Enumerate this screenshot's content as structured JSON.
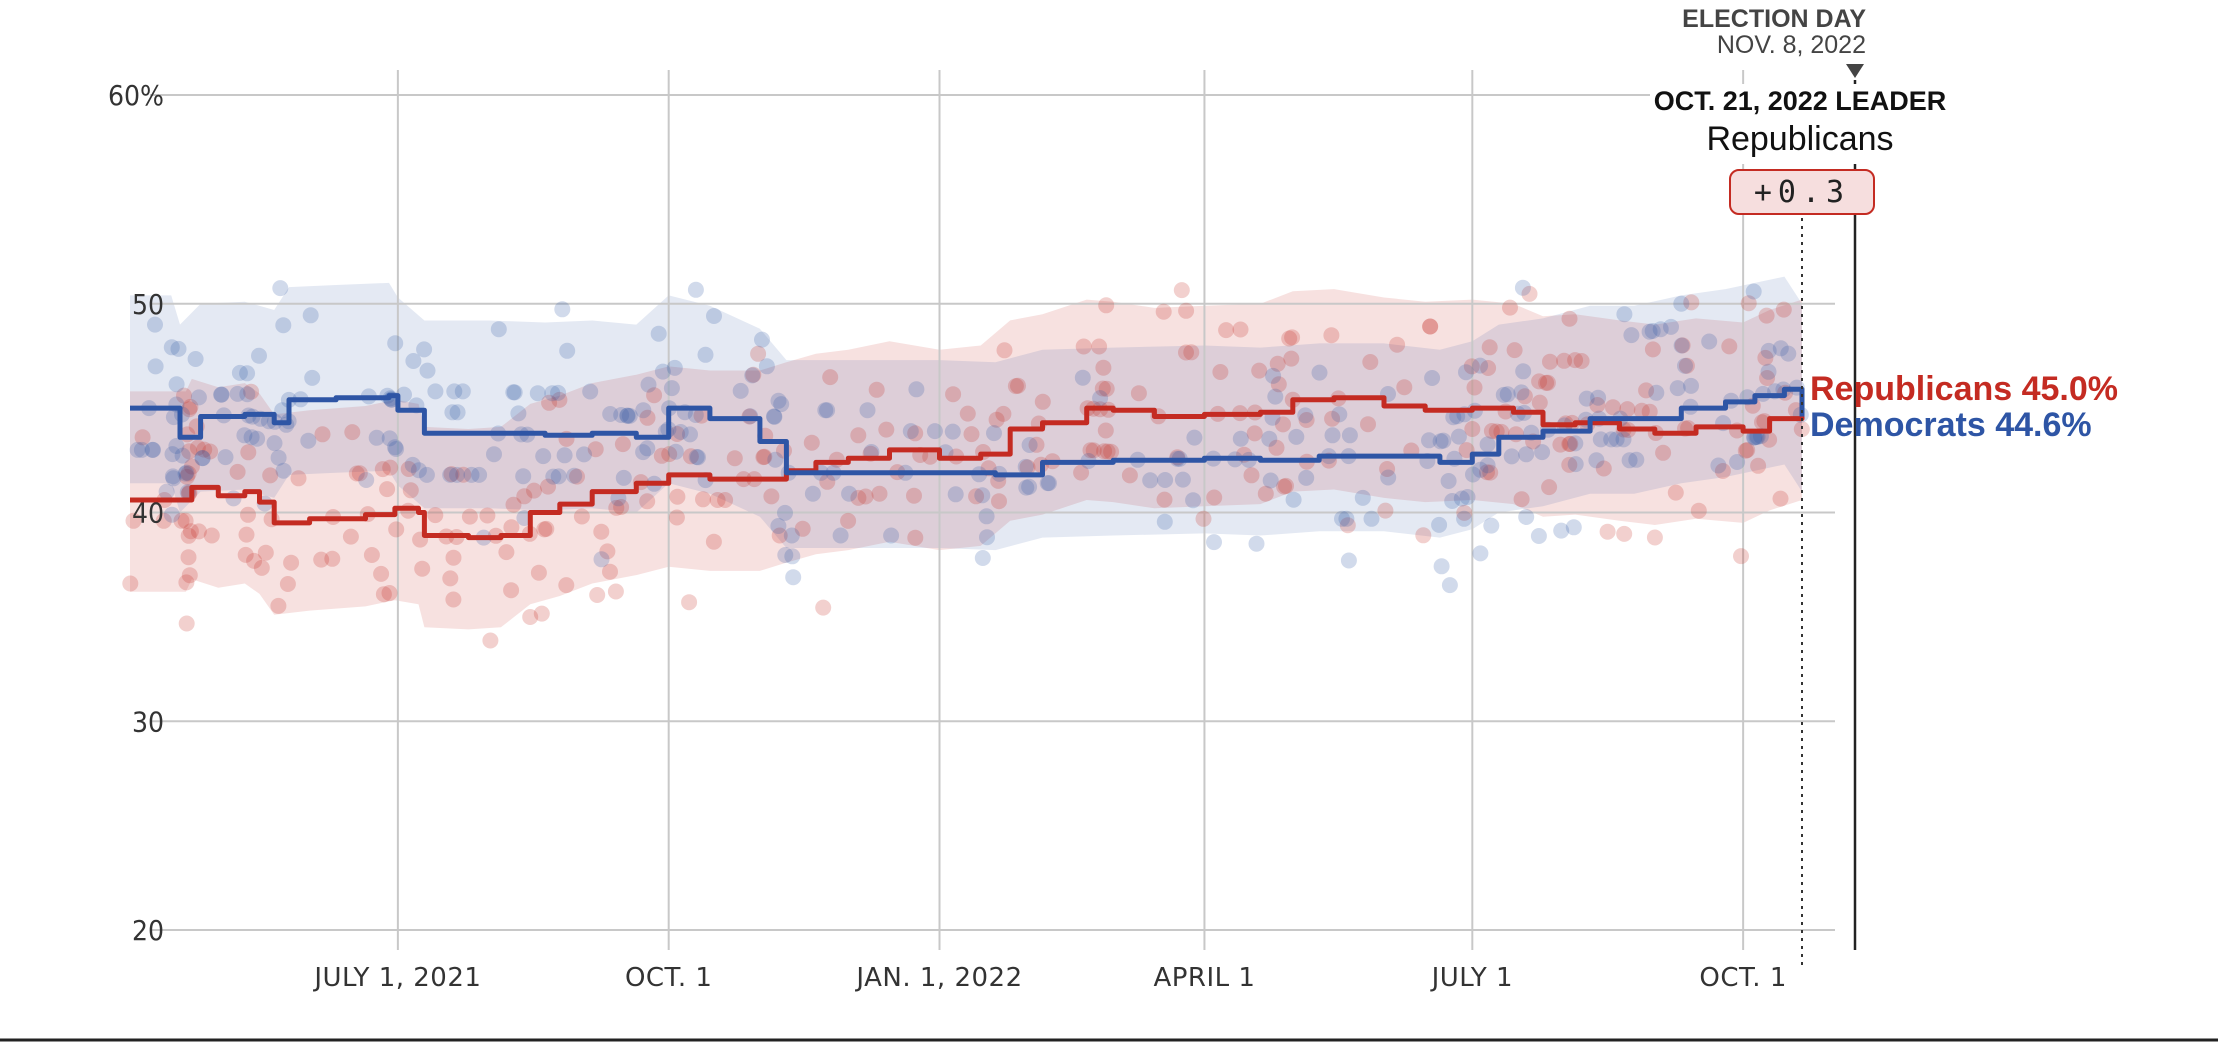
{
  "colors": {
    "republicans": "#c42b22",
    "democrats": "#2e55a5",
    "grid": "#c8c8c8",
    "axis_text": "#333333"
  },
  "annotations": {
    "election_day_label": "ELECTION DAY",
    "election_day_date": "NOV. 8, 2022",
    "leader_date_label": "OCT. 21, 2022 LEADER",
    "leader_party": "Republicans",
    "leader_margin": "+0.3"
  },
  "chart_data": {
    "type": "line",
    "y_ticks": [
      {
        "value": 60,
        "label": "60%"
      },
      {
        "value": 50,
        "label": "50"
      },
      {
        "value": 40,
        "label": "40"
      },
      {
        "value": 30,
        "label": "30"
      },
      {
        "value": 20,
        "label": "20"
      }
    ],
    "ylim": [
      20,
      60
    ],
    "x_ticks": [
      {
        "date": "2021-07-01",
        "label": "JULY 1, 2021"
      },
      {
        "date": "2021-10-01",
        "label": "OCT. 1"
      },
      {
        "date": "2022-01-01",
        "label": "JAN. 1, 2022"
      },
      {
        "date": "2022-04-01",
        "label": "APRIL 1"
      },
      {
        "date": "2022-07-01",
        "label": "JULY 1"
      },
      {
        "date": "2022-10-01",
        "label": "OCT. 1"
      }
    ],
    "xlim": [
      "2021-04-01",
      "2022-11-08"
    ],
    "election_day": "2022-11-08",
    "current_date": "2022-10-21",
    "series": [
      {
        "name": "Republicans",
        "end_label": "Republicans 45.0%",
        "color": "#c42b22",
        "points": [
          [
            "2021-04-01",
            40.6
          ],
          [
            "2021-04-20",
            40.6
          ],
          [
            "2021-04-22",
            41.2
          ],
          [
            "2021-05-01",
            40.8
          ],
          [
            "2021-05-10",
            41.0
          ],
          [
            "2021-05-15",
            40.5
          ],
          [
            "2021-05-20",
            39.5
          ],
          [
            "2021-06-01",
            39.7
          ],
          [
            "2021-06-20",
            39.9
          ],
          [
            "2021-06-30",
            40.2
          ],
          [
            "2021-07-08",
            40.0
          ],
          [
            "2021-07-10",
            38.9
          ],
          [
            "2021-07-25",
            38.8
          ],
          [
            "2021-08-05",
            38.9
          ],
          [
            "2021-08-15",
            40.0
          ],
          [
            "2021-08-25",
            40.4
          ],
          [
            "2021-09-05",
            41.0
          ],
          [
            "2021-09-20",
            41.4
          ],
          [
            "2021-10-01",
            41.8
          ],
          [
            "2021-10-15",
            41.6
          ],
          [
            "2021-11-01",
            41.6
          ],
          [
            "2021-11-10",
            42.0
          ],
          [
            "2021-11-20",
            42.4
          ],
          [
            "2021-12-01",
            42.6
          ],
          [
            "2021-12-15",
            43.0
          ],
          [
            "2022-01-01",
            42.6
          ],
          [
            "2022-01-15",
            42.8
          ],
          [
            "2022-01-25",
            44.0
          ],
          [
            "2022-02-05",
            44.3
          ],
          [
            "2022-02-20",
            45.0
          ],
          [
            "2022-03-01",
            44.9
          ],
          [
            "2022-03-15",
            44.6
          ],
          [
            "2022-04-01",
            44.7
          ],
          [
            "2022-04-20",
            44.8
          ],
          [
            "2022-05-01",
            45.4
          ],
          [
            "2022-05-15",
            45.5
          ],
          [
            "2022-06-01",
            45.1
          ],
          [
            "2022-06-15",
            44.9
          ],
          [
            "2022-07-01",
            45.0
          ],
          [
            "2022-07-15",
            44.8
          ],
          [
            "2022-07-25",
            44.2
          ],
          [
            "2022-08-05",
            44.3
          ],
          [
            "2022-08-20",
            44.0
          ],
          [
            "2022-09-01",
            43.8
          ],
          [
            "2022-09-15",
            44.1
          ],
          [
            "2022-10-01",
            43.9
          ],
          [
            "2022-10-10",
            44.5
          ],
          [
            "2022-10-21",
            45.0
          ]
        ]
      },
      {
        "name": "Democrats",
        "end_label": "Democrats 44.6%",
        "color": "#2e55a5",
        "points": [
          [
            "2021-04-01",
            45.0
          ],
          [
            "2021-04-15",
            45.0
          ],
          [
            "2021-04-18",
            43.6
          ],
          [
            "2021-04-25",
            44.6
          ],
          [
            "2021-05-10",
            44.7
          ],
          [
            "2021-05-20",
            44.3
          ],
          [
            "2021-05-25",
            45.4
          ],
          [
            "2021-06-10",
            45.5
          ],
          [
            "2021-06-28",
            45.6
          ],
          [
            "2021-07-01",
            44.9
          ],
          [
            "2021-07-10",
            43.8
          ],
          [
            "2021-08-01",
            43.8
          ],
          [
            "2021-08-20",
            43.7
          ],
          [
            "2021-09-05",
            43.8
          ],
          [
            "2021-09-20",
            43.6
          ],
          [
            "2021-10-01",
            45.0
          ],
          [
            "2021-10-15",
            44.5
          ],
          [
            "2021-11-01",
            43.4
          ],
          [
            "2021-11-10",
            41.9
          ],
          [
            "2021-12-01",
            41.9
          ],
          [
            "2022-01-01",
            41.9
          ],
          [
            "2022-01-20",
            41.8
          ],
          [
            "2022-02-05",
            42.4
          ],
          [
            "2022-03-01",
            42.5
          ],
          [
            "2022-04-01",
            42.6
          ],
          [
            "2022-04-20",
            42.5
          ],
          [
            "2022-05-10",
            42.7
          ],
          [
            "2022-06-01",
            42.7
          ],
          [
            "2022-06-20",
            42.4
          ],
          [
            "2022-07-01",
            42.8
          ],
          [
            "2022-07-10",
            43.6
          ],
          [
            "2022-07-25",
            43.9
          ],
          [
            "2022-08-10",
            44.5
          ],
          [
            "2022-08-25",
            44.5
          ],
          [
            "2022-09-10",
            45.0
          ],
          [
            "2022-09-25",
            45.3
          ],
          [
            "2022-10-05",
            45.6
          ],
          [
            "2022-10-15",
            45.9
          ],
          [
            "2022-10-21",
            44.6
          ]
        ]
      }
    ],
    "polls_description_omitted": false
  }
}
